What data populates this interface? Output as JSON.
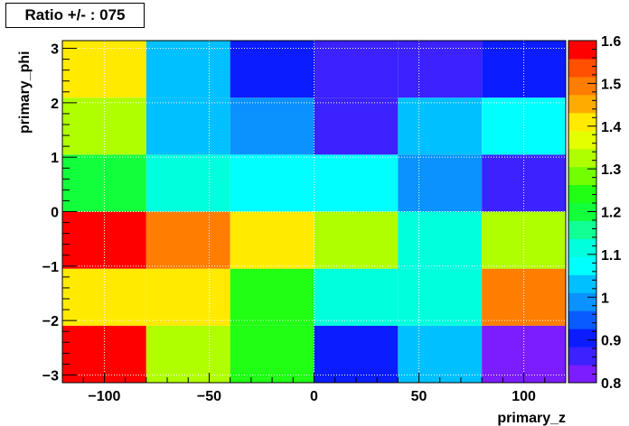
{
  "chart_data": {
    "type": "heatmap",
    "title": "Ratio +/- : 075",
    "xlabel": "primary_z",
    "ylabel": "primary_phi",
    "xlim": [
      -120,
      120
    ],
    "ylim": [
      -3.1416,
      3.1416
    ],
    "x_edges": [
      -120,
      -80,
      -40,
      0,
      40,
      80,
      120
    ],
    "y_edges": [
      -3.1416,
      -2.0944,
      -1.0472,
      0,
      1.0472,
      2.0944,
      3.1416
    ],
    "x_ticks": [
      -100,
      -50,
      0,
      50,
      100
    ],
    "x_tick_labels": [
      "−100",
      "−50",
      "0",
      "50",
      "100"
    ],
    "y_ticks": [
      -3,
      -2,
      -1,
      0,
      1,
      2,
      3
    ],
    "y_tick_labels": [
      "−3",
      "−2",
      "−1",
      "0",
      "1",
      "2",
      "3"
    ],
    "values": [
      [
        1.6,
        1.34,
        1.24,
        0.91,
        1.02,
        0.84
      ],
      [
        1.39,
        1.39,
        1.24,
        1.12,
        1.12,
        1.5
      ],
      [
        1.6,
        1.5,
        1.42,
        1.32,
        1.12,
        1.34
      ],
      [
        1.2,
        1.12,
        1.08,
        1.08,
        0.98,
        0.88
      ],
      [
        1.34,
        1.02,
        0.98,
        0.88,
        1.02,
        1.08
      ],
      [
        1.39,
        1.02,
        0.92,
        0.88,
        0.88,
        0.92
      ]
    ],
    "zlim": [
      0.8,
      1.6
    ],
    "z_ticks": [
      0.8,
      0.9,
      1,
      1.1,
      1.2,
      1.3,
      1.4,
      1.5,
      1.6
    ],
    "z_tick_labels": [
      "0.8",
      "0.9",
      "1",
      "1.1",
      "1.2",
      "1.3",
      "1.4",
      "1.5",
      "1.6"
    ],
    "palette": [
      "#7b1dff",
      "#3b22ff",
      "#0b1cff",
      "#0a5bff",
      "#0a92ff",
      "#00c0ff",
      "#00ffff",
      "#00ffdd",
      "#12ff96",
      "#12ff3c",
      "#20ff14",
      "#73ff00",
      "#b0ff00",
      "#e3ff00",
      "#ffea00",
      "#ffab00",
      "#ff7d00",
      "#ff4f00",
      "#ff0000"
    ],
    "grid": true
  }
}
